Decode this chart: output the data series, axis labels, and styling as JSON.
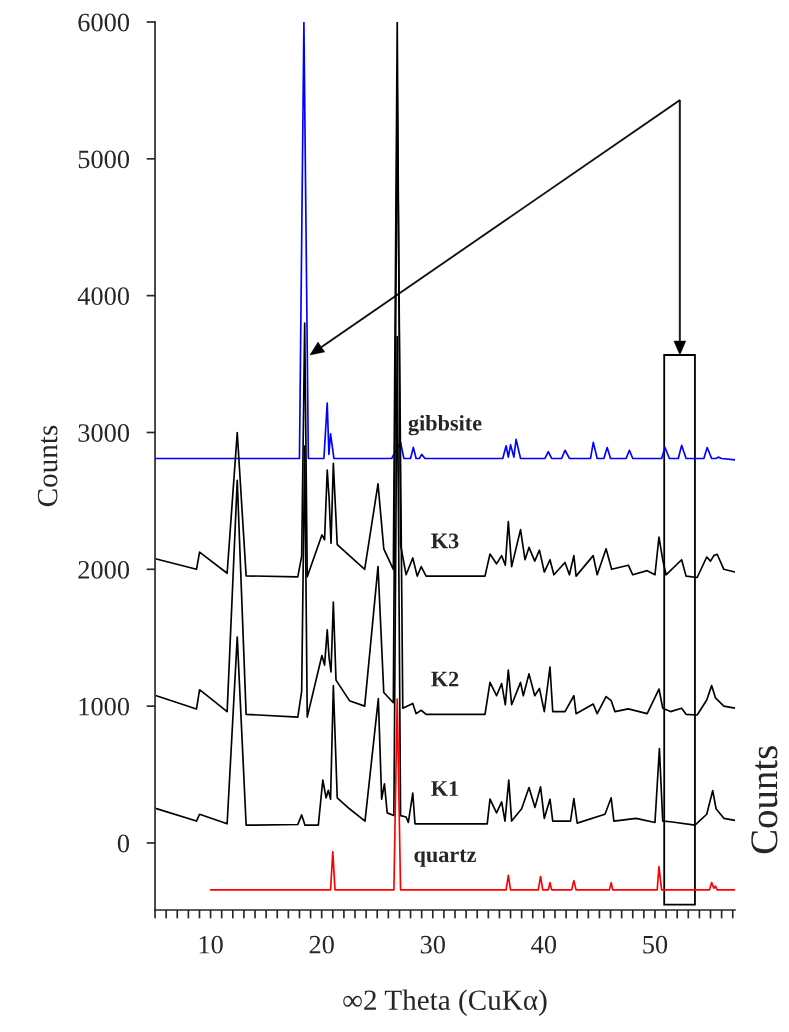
{
  "chart_data": {
    "type": "line",
    "xlabel": "∞2 Theta (CuKα)",
    "ylabel": "Counts",
    "xlim": [
      5,
      57.2
    ],
    "ylim": [
      -490,
      6000
    ],
    "xticks": [
      {
        "value": 5,
        "label": null
      },
      {
        "value": 6,
        "label": null
      },
      {
        "value": 7,
        "label": null
      },
      {
        "value": 8,
        "label": null
      },
      {
        "value": 9,
        "label": null
      },
      10,
      {
        "value": 11,
        "label": null
      },
      {
        "value": 12,
        "label": null
      },
      {
        "value": 13,
        "label": null
      },
      {
        "value": 14,
        "label": null
      },
      {
        "value": 15,
        "label": null
      },
      {
        "value": 16,
        "label": null
      },
      {
        "value": 17,
        "label": null
      },
      {
        "value": 18,
        "label": null
      },
      {
        "value": 19,
        "label": null
      },
      20,
      {
        "value": 21,
        "label": null
      },
      {
        "value": 22,
        "label": null
      },
      {
        "value": 23,
        "label": null
      },
      {
        "value": 24,
        "label": null
      },
      {
        "value": 25,
        "label": null
      },
      {
        "value": 26,
        "label": null
      },
      {
        "value": 27,
        "label": null
      },
      {
        "value": 28,
        "label": null
      },
      {
        "value": 29,
        "label": null
      },
      30,
      {
        "value": 31,
        "label": null
      },
      {
        "value": 32,
        "label": null
      },
      {
        "value": 33,
        "label": null
      },
      {
        "value": 34,
        "label": null
      },
      {
        "value": 35,
        "label": null
      },
      {
        "value": 36,
        "label": null
      },
      {
        "value": 37,
        "label": null
      },
      {
        "value": 38,
        "label": null
      },
      {
        "value": 39,
        "label": null
      },
      40,
      {
        "value": 41,
        "label": null
      },
      {
        "value": 42,
        "label": null
      },
      {
        "value": 43,
        "label": null
      },
      {
        "value": 44,
        "label": null
      },
      {
        "value": 45,
        "label": null
      },
      {
        "value": 46,
        "label": null
      },
      {
        "value": 47,
        "label": null
      },
      {
        "value": 48,
        "label": null
      },
      {
        "value": 49,
        "label": null
      },
      50,
      {
        "value": 51,
        "label": null
      },
      {
        "value": 52,
        "label": null
      },
      {
        "value": 53,
        "label": null
      },
      {
        "value": 54,
        "label": null
      },
      {
        "value": 55,
        "label": null
      },
      {
        "value": 56,
        "label": null
      },
      {
        "value": 57,
        "label": null
      }
    ],
    "yticks": [
      0,
      1000,
      2000,
      3000,
      4000,
      5000,
      6000
    ],
    "series": [
      {
        "name": "gibbsite",
        "color": "#0000ff",
        "x": [
          5,
          18.0,
          18.4,
          18.8,
          20.2,
          20.5,
          20.65,
          20.8,
          21.1,
          26.3,
          27.1,
          27.4,
          28.0,
          28.25,
          28.5,
          28.8,
          29.0,
          29.3,
          36.3,
          36.6,
          36.8,
          37.0,
          37.3,
          37.5,
          37.9,
          38.3,
          40.1,
          40.4,
          40.7,
          41.6,
          41.9,
          42.3,
          44.2,
          44.45,
          44.8,
          45.4,
          45.7,
          46.0,
          47.4,
          47.7,
          48.0,
          50.6,
          50.9,
          51.3,
          52.1,
          52.4,
          52.8,
          54.4,
          54.7,
          55.1,
          55.5,
          55.7,
          56.0,
          57.2
        ],
        "values": [
          2810,
          2810,
          6000,
          2810,
          2810,
          3215,
          2840,
          2990,
          2810,
          2810,
          2928,
          2810,
          2810,
          2891,
          2810,
          2810,
          2840,
          2810,
          2810,
          2903,
          2820,
          2910,
          2820,
          2950,
          2810,
          2810,
          2810,
          2860,
          2810,
          2810,
          2870,
          2810,
          2810,
          2928,
          2810,
          2810,
          2890,
          2810,
          2810,
          2870,
          2810,
          2810,
          2890,
          2810,
          2810,
          2906,
          2810,
          2810,
          2890,
          2810,
          2810,
          2820,
          2810,
          2800
        ]
      },
      {
        "name": "K3",
        "color": "#000000",
        "x": [
          5.12,
          8.73,
          9.01,
          11.49,
          12.4,
          13.2,
          17.85,
          18.2,
          18.47,
          18.7,
          20.02,
          20.26,
          20.5,
          20.67,
          20.84,
          21.05,
          21.4,
          22.5,
          23.87,
          25.07,
          25.59,
          26.45,
          26.8,
          27.1,
          27.6,
          28.2,
          28.6,
          28.96,
          29.4,
          34.7,
          35.15,
          35.74,
          36.2,
          36.53,
          36.8,
          37.1,
          37.9,
          38.3,
          38.66,
          39.18,
          39.6,
          40.04,
          40.55,
          40.9,
          41.9,
          42.3,
          42.7,
          42.9,
          44.44,
          44.8,
          45.6,
          46.1,
          47.6,
          48.0,
          49.3,
          50.0,
          50.36,
          50.7,
          51.0,
          52.4,
          52.8,
          53.8,
          54.66,
          55.0,
          55.3,
          55.6,
          56.2,
          57.2
        ],
        "values": [
          2075,
          2000,
          2126,
          1971,
          3000,
          1952,
          1945,
          2097,
          3800,
          1945,
          2251,
          2216,
          2726,
          2517,
          2190,
          2774,
          2180,
          2100,
          2000,
          2624,
          2150,
          2000,
          6000,
          2178,
          1960,
          2083,
          1950,
          2020,
          1950,
          1950,
          2112,
          2040,
          2100,
          2030,
          2349,
          2020,
          2290,
          2070,
          2160,
          2060,
          2140,
          1980,
          2070,
          1960,
          2050,
          1960,
          2100,
          1950,
          2100,
          1960,
          2150,
          2000,
          2030,
          1960,
          1990,
          1960,
          2236,
          2070,
          1960,
          2070,
          1950,
          1940,
          2090,
          2060,
          2100,
          2110,
          2000,
          1980
        ]
      },
      {
        "name": "K2",
        "color": "#000000",
        "x": [
          5.12,
          8.73,
          9.01,
          11.49,
          12.4,
          13.2,
          17.85,
          18.2,
          18.47,
          18.7,
          20.02,
          20.26,
          20.5,
          20.67,
          20.84,
          21.05,
          21.29,
          22.5,
          23.87,
          25.07,
          25.59,
          26.45,
          26.8,
          27.3,
          28.2,
          28.5,
          28.96,
          29.4,
          34.7,
          35.15,
          35.74,
          36.2,
          36.53,
          36.8,
          37.1,
          37.9,
          38.15,
          38.66,
          39.18,
          39.6,
          40.04,
          40.55,
          40.8,
          41.9,
          42.7,
          42.9,
          44.44,
          44.8,
          45.6,
          46.06,
          46.4,
          47.6,
          49.3,
          50.36,
          50.7,
          51.4,
          52.4,
          52.8,
          53.8,
          54.66,
          55.1,
          55.45,
          56.2,
          57.2
        ],
        "values": [
          1076,
          979,
          1120,
          960,
          2650,
          940,
          920,
          1110,
          2900,
          920,
          1370,
          1300,
          1557,
          1350,
          1250,
          1760,
          1190,
          1040,
          1000,
          2020,
          1100,
          1025,
          5500,
          985,
          1020,
          945,
          970,
          940,
          940,
          1174,
          1076,
          1165,
          1010,
          1264,
          1010,
          1174,
          1076,
          1236,
          1076,
          1130,
          960,
          1286,
          960,
          960,
          1076,
          945,
          1015,
          945,
          1070,
          1040,
          960,
          980,
          945,
          1125,
          985,
          960,
          985,
          940,
          935,
          1045,
          1150,
          1060,
          1000,
          985
        ]
      },
      {
        "name": "K1",
        "color": "#000000",
        "x": [
          5.12,
          8.73,
          9.01,
          11.49,
          12.4,
          13.2,
          17.85,
          18.2,
          18.5,
          19.7,
          20.1,
          20.4,
          20.6,
          20.8,
          21.05,
          21.4,
          22.5,
          23.9,
          25.1,
          25.4,
          25.65,
          25.9,
          26.5,
          26.8,
          27.1,
          27.6,
          27.8,
          28.2,
          28.4,
          34.9,
          35.15,
          35.74,
          36.2,
          36.5,
          36.84,
          37.1,
          38.0,
          38.66,
          39.2,
          39.7,
          40.04,
          40.55,
          40.8,
          42.4,
          42.7,
          43.0,
          45.5,
          46.06,
          46.3,
          48.3,
          50.0,
          50.4,
          50.7,
          51.4,
          53.6,
          54.66,
          55.2,
          55.5,
          56.2,
          57.2
        ],
        "values": [
          251,
          160,
          210,
          140,
          1505,
          130,
          135,
          205,
          130,
          130,
          460,
          330,
          385,
          320,
          1150,
          330,
          250,
          160,
          1055,
          320,
          433,
          220,
          200,
          3700,
          200,
          190,
          150,
          365,
          140,
          140,
          320,
          220,
          300,
          160,
          460,
          160,
          250,
          405,
          260,
          410,
          180,
          320,
          160,
          160,
          325,
          145,
          210,
          330,
          160,
          180,
          150,
          690,
          160,
          155,
          130,
          210,
          383,
          250,
          180,
          165
        ]
      },
      {
        "name": "quartz",
        "color": "#ff0000",
        "x": [
          10,
          20.8,
          21.0,
          21.2,
          26.5,
          26.8,
          27.1,
          36.6,
          36.8,
          37.0,
          39.5,
          39.7,
          39.9,
          40.4,
          40.55,
          40.7,
          42.5,
          42.7,
          42.9,
          45.9,
          46.06,
          46.2,
          50.2,
          50.36,
          50.6,
          54.9,
          55.1,
          55.3,
          55.45,
          55.6,
          57.2
        ],
        "values": [
          -343,
          -343,
          -65,
          -343,
          -343,
          1052,
          -343,
          -343,
          -237,
          -343,
          -343,
          -245,
          -343,
          -343,
          -290,
          -343,
          -343,
          -275,
          -343,
          -343,
          -290,
          -343,
          -343,
          -173,
          -343,
          -343,
          -290,
          -330,
          -315,
          -343,
          -343
        ]
      }
    ],
    "annotations": [
      "Counts"
    ]
  }
}
